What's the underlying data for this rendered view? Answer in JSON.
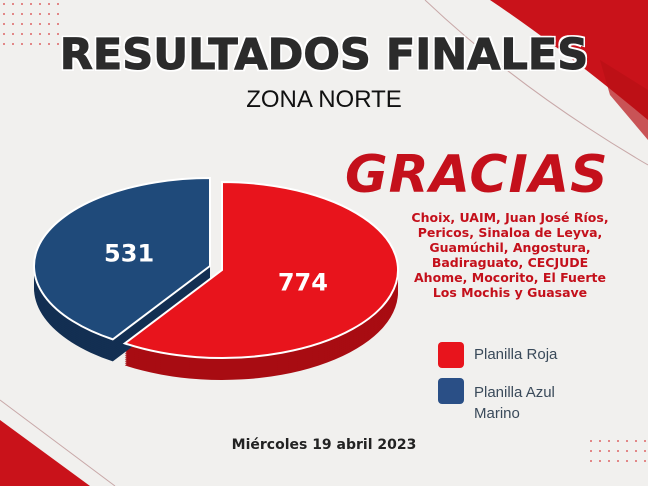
{
  "header": {
    "title": "RESULTADOS FINALES",
    "subtitle": "ZONA NORTE"
  },
  "thanks": {
    "heading": "GRACIAS",
    "lines": [
      "Choix, UAIM, Juan José Ríos,",
      "Pericos, Sinaloa de Leyva,",
      "Guamúchil, Angostura,",
      "Badiraguato, CECJUDE",
      "Ahome, Mocorito, El Fuerte",
      "Los Mochis y Guasave"
    ]
  },
  "footer": {
    "date": "Miércoles 19 abril 2023"
  },
  "chart_data": {
    "type": "pie",
    "style": "3d",
    "categories": [
      "Planilla Roja",
      "Planilla Azul Marino"
    ],
    "values": [
      774,
      531
    ],
    "data_labels": [
      "774",
      "531"
    ],
    "colors": [
      "#e8141c",
      "#1f4a7a"
    ],
    "legend": {
      "entries": [
        "Planilla Roja",
        "Planilla Azul Marino"
      ],
      "placement": "right"
    }
  }
}
